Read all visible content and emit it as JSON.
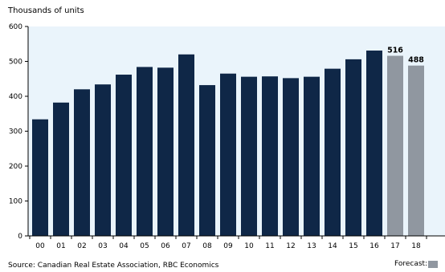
{
  "chart_data": {
    "type": "bar",
    "title": "",
    "ylabel": "Thousands of units",
    "xlabel": "",
    "ylim": [
      0,
      600
    ],
    "yticks": [
      0,
      100,
      200,
      300,
      400,
      500,
      600
    ],
    "grid": false,
    "categories": [
      "00",
      "01",
      "02",
      "03",
      "04",
      "05",
      "06",
      "07",
      "08",
      "09",
      "10",
      "11",
      "12",
      "13",
      "14",
      "15",
      "16",
      "17",
      "18"
    ],
    "values": [
      334,
      382,
      420,
      434,
      462,
      484,
      482,
      520,
      432,
      465,
      456,
      457,
      452,
      456,
      479,
      506,
      531,
      516,
      488
    ],
    "is_forecast": [
      false,
      false,
      false,
      false,
      false,
      false,
      false,
      false,
      false,
      false,
      false,
      false,
      false,
      false,
      false,
      false,
      false,
      true,
      true
    ],
    "data_labels": [
      "",
      "",
      "",
      "",
      "",
      "",
      "",
      "",
      "",
      "",
      "",
      "",
      "",
      "",
      "",
      "",
      "",
      "516",
      "488"
    ],
    "colors": {
      "actual": "#0f2747",
      "forecast": "#9097a0",
      "plot_background": "#eaf4fb"
    },
    "source": "Source: Canadian Real Estate Association, RBC Economics",
    "legend": {
      "forecast_label": "Forecast:"
    }
  }
}
